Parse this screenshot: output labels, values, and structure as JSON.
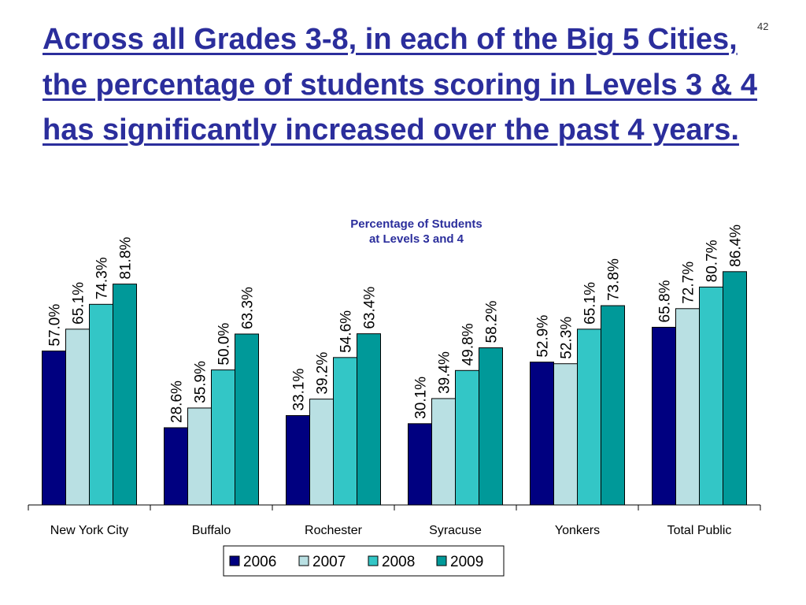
{
  "slide": {
    "title": "Across all Grades 3-8, in each of the Big 5 Cities, the percentage of students scoring in Levels 3 & 4 has significantly increased over the past 4 years.",
    "page_number": "42"
  },
  "chart_data": {
    "type": "bar",
    "title": [
      "Percentage of Students",
      "at Levels 3 and 4"
    ],
    "xlabel": "",
    "ylabel": "",
    "ylim": [
      0,
      100
    ],
    "grid": false,
    "legend_position": "bottom",
    "categories": [
      "New York City",
      "Buffalo",
      "Rochester",
      "Syracuse",
      "Yonkers",
      "Total Public"
    ],
    "series": [
      {
        "name": "2006",
        "color": "#000080",
        "values": [
          57.0,
          28.6,
          33.1,
          30.1,
          52.9,
          65.8
        ]
      },
      {
        "name": "2007",
        "color": "#b9e0e3",
        "values": [
          65.1,
          35.9,
          39.2,
          39.4,
          52.3,
          72.7
        ]
      },
      {
        "name": "2008",
        "color": "#33c6c6",
        "values": [
          74.3,
          50.0,
          54.6,
          49.8,
          65.1,
          80.7
        ]
      },
      {
        "name": "2009",
        "color": "#009999",
        "values": [
          81.8,
          63.3,
          63.4,
          58.2,
          73.8,
          86.4
        ]
      }
    ]
  }
}
